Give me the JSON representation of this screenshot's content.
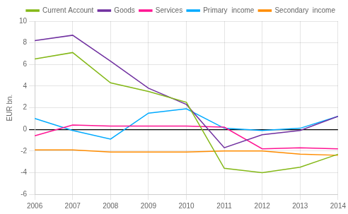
{
  "chart_data": {
    "type": "line",
    "ylabel": "EUR bn.",
    "x": [
      2006,
      2007,
      2008,
      2009,
      2010,
      2011,
      2012,
      2013,
      2014
    ],
    "series": [
      {
        "name": "Current Account",
        "color": "#84b817",
        "values": [
          6.5,
          7.1,
          4.3,
          3.5,
          2.5,
          -3.6,
          -4.0,
          -3.5,
          -2.3
        ]
      },
      {
        "name": "Goods",
        "color": "#7030a0",
        "values": [
          8.2,
          8.7,
          6.3,
          3.8,
          2.3,
          -1.7,
          -0.5,
          -0.1,
          1.2
        ]
      },
      {
        "name": "Services",
        "color": "#ff1493",
        "values": [
          -0.6,
          0.4,
          0.3,
          0.3,
          0.3,
          0.2,
          -1.8,
          -1.7,
          -1.8
        ]
      },
      {
        "name": "Primary  income",
        "color": "#00aaff",
        "values": [
          1.0,
          -0.1,
          -0.9,
          1.5,
          1.9,
          0.1,
          -0.1,
          0.1,
          1.2
        ]
      },
      {
        "name": "Secondary  income",
        "color": "#ff8c00",
        "values": [
          -1.9,
          -1.9,
          -2.1,
          -2.1,
          -2.1,
          -2.0,
          -2.0,
          -2.3,
          -2.4
        ]
      }
    ],
    "xlim": [
      2006,
      2014
    ],
    "xticks": [
      2006,
      2007,
      2008,
      2009,
      2010,
      2011,
      2012,
      2013,
      2014
    ],
    "ylim": [
      -6,
      10
    ],
    "yticks": [
      -6,
      -4,
      -2,
      0,
      2,
      4,
      6,
      8,
      10
    ],
    "grid": true,
    "legend": "upper right"
  }
}
